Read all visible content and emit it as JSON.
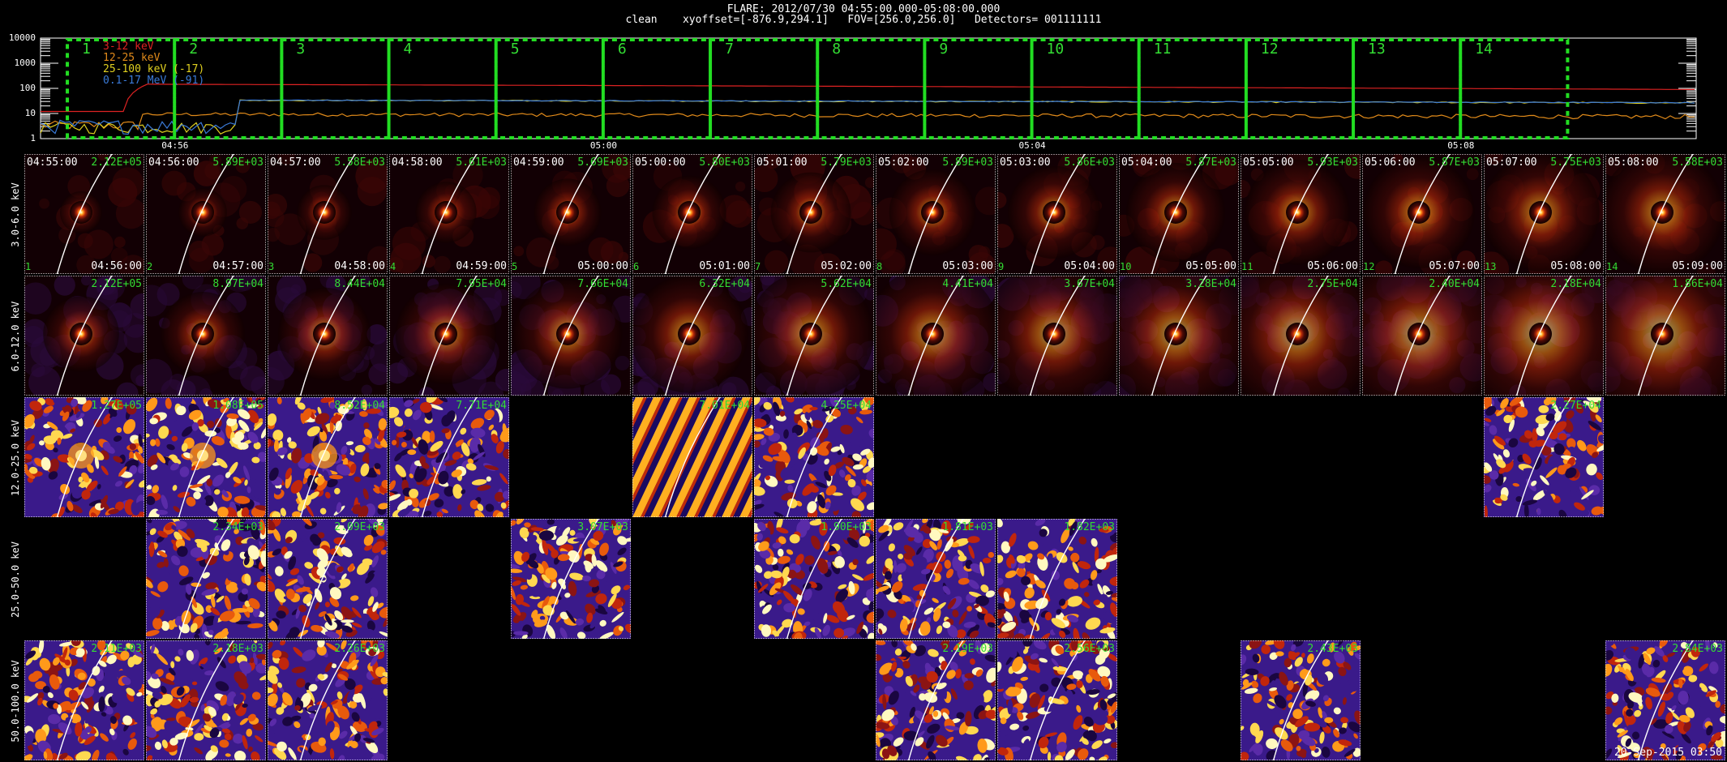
{
  "header": {
    "line1": "FLARE: 2012/07/30 04:55:00.000-05:08:00.000",
    "line2": "clean    xyoffset=[-876.9,294.1]   FOV=[256.0,256.0]   Detectors= 001111111"
  },
  "lightcurve": {
    "legend": [
      {
        "label": "3-12 keV",
        "color": "#dd2222"
      },
      {
        "label": "12-25 keV",
        "color": "#e08a1a"
      },
      {
        "label": "25-100 keV (-17)",
        "color": "#e0d020"
      },
      {
        "label": "0.1-17 MeV (-91)",
        "color": "#3a7ad8"
      }
    ],
    "y_ticks": [
      "10000",
      "1000",
      "100",
      "10",
      "1"
    ],
    "x_ticks": [
      "04:56",
      "05:00",
      "05:04",
      "05:08"
    ],
    "interval_numbers": [
      "1",
      "2",
      "3",
      "4",
      "5",
      "6",
      "7",
      "8",
      "9",
      "10",
      "11",
      "12",
      "13",
      "14"
    ],
    "box_color": "#22dd22"
  },
  "energy_bands": [
    "3.0-6.0 keV",
    "6.0-12.0 keV",
    "12.0-25.0 keV",
    "25.0-50.0 keV",
    "50.0-100.0 keV"
  ],
  "rows": [
    {
      "panels": [
        {
          "start": "04:55:00",
          "end": "04:56:00",
          "idx": "1",
          "peak": "2.12E+05",
          "type": "hot"
        },
        {
          "start": "04:56:00",
          "end": "04:57:00",
          "idx": "2",
          "peak": "5.89E+03",
          "type": "hot"
        },
        {
          "start": "04:57:00",
          "end": "04:58:00",
          "idx": "3",
          "peak": "5.58E+03",
          "type": "hot"
        },
        {
          "start": "04:58:00",
          "end": "04:59:00",
          "idx": "4",
          "peak": "5.61E+03",
          "type": "hot"
        },
        {
          "start": "04:59:00",
          "end": "05:00:00",
          "idx": "5",
          "peak": "5.69E+03",
          "type": "hot"
        },
        {
          "start": "05:00:00",
          "end": "05:01:00",
          "idx": "6",
          "peak": "5.80E+03",
          "type": "hot"
        },
        {
          "start": "05:01:00",
          "end": "05:02:00",
          "idx": "7",
          "peak": "5.79E+03",
          "type": "hot"
        },
        {
          "start": "05:02:00",
          "end": "05:03:00",
          "idx": "8",
          "peak": "5.89E+03",
          "type": "hot"
        },
        {
          "start": "05:03:00",
          "end": "05:04:00",
          "idx": "9",
          "peak": "5.86E+03",
          "type": "hot"
        },
        {
          "start": "05:04:00",
          "end": "05:05:00",
          "idx": "10",
          "peak": "5.87E+03",
          "type": "hot"
        },
        {
          "start": "05:05:00",
          "end": "05:06:00",
          "idx": "11",
          "peak": "5.93E+03",
          "type": "hot"
        },
        {
          "start": "05:06:00",
          "end": "05:07:00",
          "idx": "12",
          "peak": "5.87E+03",
          "type": "hot"
        },
        {
          "start": "05:07:00",
          "end": "05:08:00",
          "idx": "13",
          "peak": "5.75E+03",
          "type": "hot"
        },
        {
          "start": "05:08:00",
          "end": "05:09:00",
          "idx": "14",
          "peak": "5.58E+03",
          "type": "hot"
        }
      ]
    },
    {
      "panels": [
        {
          "peak": "2.12E+05",
          "type": "hot"
        },
        {
          "peak": "8.97E+04",
          "type": "hot"
        },
        {
          "peak": "8.44E+04",
          "type": "hot"
        },
        {
          "peak": "7.95E+04",
          "type": "hot"
        },
        {
          "peak": "7.66E+04",
          "type": "hot"
        },
        {
          "peak": "6.32E+04",
          "type": "hot"
        },
        {
          "peak": "5.62E+04",
          "type": "hot"
        },
        {
          "peak": "4.41E+04",
          "type": "hot"
        },
        {
          "peak": "3.67E+04",
          "type": "hot"
        },
        {
          "peak": "3.28E+04",
          "type": "hot"
        },
        {
          "peak": "2.75E+04",
          "type": "hot"
        },
        {
          "peak": "2.40E+04",
          "type": "hot"
        },
        {
          "peak": "2.18E+04",
          "type": "hot"
        },
        {
          "peak": "1.86E+04",
          "type": "hot"
        }
      ]
    },
    {
      "panels": [
        {
          "peak": "1.27E+05",
          "type": "noise"
        },
        {
          "peak": "1.08E+05",
          "type": "noise"
        },
        {
          "peak": "8.52E+04",
          "type": "noise"
        },
        {
          "peak": "7.71E+04",
          "type": "noise"
        },
        {
          "peak": "",
          "type": "empty"
        },
        {
          "peak": "7.01E+04",
          "type": "stripes"
        },
        {
          "peak": "4.25E+04",
          "type": "noise"
        },
        {
          "peak": "",
          "type": "empty"
        },
        {
          "peak": "",
          "type": "empty"
        },
        {
          "peak": "",
          "type": "empty"
        },
        {
          "peak": "",
          "type": "empty"
        },
        {
          "peak": "",
          "type": "empty"
        },
        {
          "peak": "2.27E+04",
          "type": "noise"
        },
        {
          "peak": "",
          "type": "empty"
        }
      ]
    },
    {
      "panels": [
        {
          "peak": "",
          "type": "empty"
        },
        {
          "peak": "2.34E+03",
          "type": "noise"
        },
        {
          "peak": "2.09E+03",
          "type": "noise"
        },
        {
          "peak": "",
          "type": "empty"
        },
        {
          "peak": "3.07E+03",
          "type": "noise"
        },
        {
          "peak": "",
          "type": "empty"
        },
        {
          "peak": "1.90E+03",
          "type": "noise"
        },
        {
          "peak": "1.81E+03",
          "type": "noise"
        },
        {
          "peak": "1.82E+03",
          "type": "noise"
        },
        {
          "peak": "",
          "type": "empty"
        },
        {
          "peak": "",
          "type": "empty"
        },
        {
          "peak": "",
          "type": "empty"
        },
        {
          "peak": "",
          "type": "empty"
        },
        {
          "peak": "",
          "type": "empty"
        }
      ]
    },
    {
      "panels": [
        {
          "peak": "2.11E+03",
          "type": "noise"
        },
        {
          "peak": "2.18E+03",
          "type": "noise"
        },
        {
          "peak": "2.26E+03",
          "type": "noise"
        },
        {
          "peak": "",
          "type": "empty"
        },
        {
          "peak": "",
          "type": "empty"
        },
        {
          "peak": "",
          "type": "empty"
        },
        {
          "peak": "",
          "type": "empty"
        },
        {
          "peak": "2.19E+03",
          "type": "noise"
        },
        {
          "peak": "2.56E+03",
          "type": "noise"
        },
        {
          "peak": "",
          "type": "empty"
        },
        {
          "peak": "2.43E+03",
          "type": "noise"
        },
        {
          "peak": "",
          "type": "empty"
        },
        {
          "peak": "",
          "type": "empty"
        },
        {
          "peak": "2.84E+03",
          "type": "noise"
        }
      ]
    }
  ],
  "footer_stamp": "20-Sep-2015 03:50"
}
